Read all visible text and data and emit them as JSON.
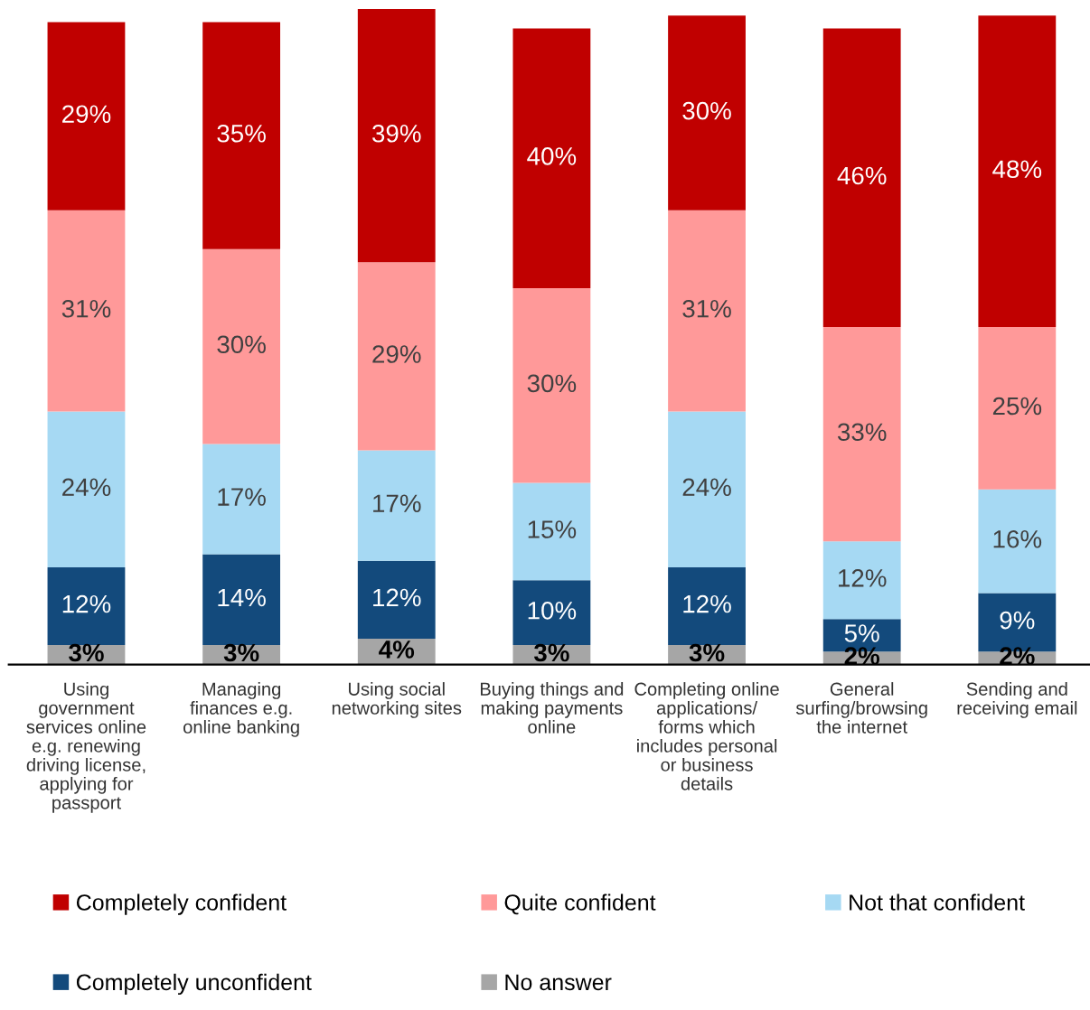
{
  "chart_data": {
    "type": "bar",
    "stacked": true,
    "legend": "bottom",
    "grid": false,
    "categories": [
      "Using\ngovernment\nservices online\ne.g. renewing\ndriving license,\napplying for\npassport",
      "Managing\nfinances e.g.\nonline banking",
      "Using social\nnetworking sites",
      "Buying things and\nmaking payments\nonline",
      "Completing online\napplications/\nforms which\nincludes personal\nor business\ndetails",
      "General\nsurfing/browsing\nthe internet",
      "Sending and\nreceiving email"
    ],
    "series": [
      {
        "name": "No answer",
        "color": "#a6a6a6",
        "values": [
          3,
          3,
          4,
          3,
          3,
          2,
          2
        ],
        "value_labels": [
          "3%",
          "3%",
          "4%",
          "3%",
          "3%",
          "2%",
          "2%"
        ]
      },
      {
        "name": "Completely unconfident",
        "color": "#134a7c",
        "values": [
          12,
          14,
          12,
          10,
          12,
          5,
          9
        ],
        "value_labels": [
          "12%",
          "14%",
          "12%",
          "10%",
          "12%",
          "5%",
          "9%"
        ]
      },
      {
        "name": "Not that confident",
        "color": "#a6d9f3",
        "values": [
          24,
          17,
          17,
          15,
          24,
          12,
          16
        ],
        "value_labels": [
          "24%",
          "17%",
          "17%",
          "15%",
          "24%",
          "12%",
          "16%"
        ]
      },
      {
        "name": "Quite confident",
        "color": "#ff9999",
        "values": [
          31,
          30,
          29,
          30,
          31,
          33,
          25
        ],
        "value_labels": [
          "31%",
          "30%",
          "29%",
          "30%",
          "31%",
          "33%",
          "25%"
        ]
      },
      {
        "name": "Completely confident",
        "color": "#c00000",
        "values": [
          29,
          35,
          39,
          40,
          30,
          46,
          48
        ],
        "value_labels": [
          "29%",
          "35%",
          "39%",
          "40%",
          "30%",
          "46%",
          "48%"
        ]
      }
    ]
  }
}
